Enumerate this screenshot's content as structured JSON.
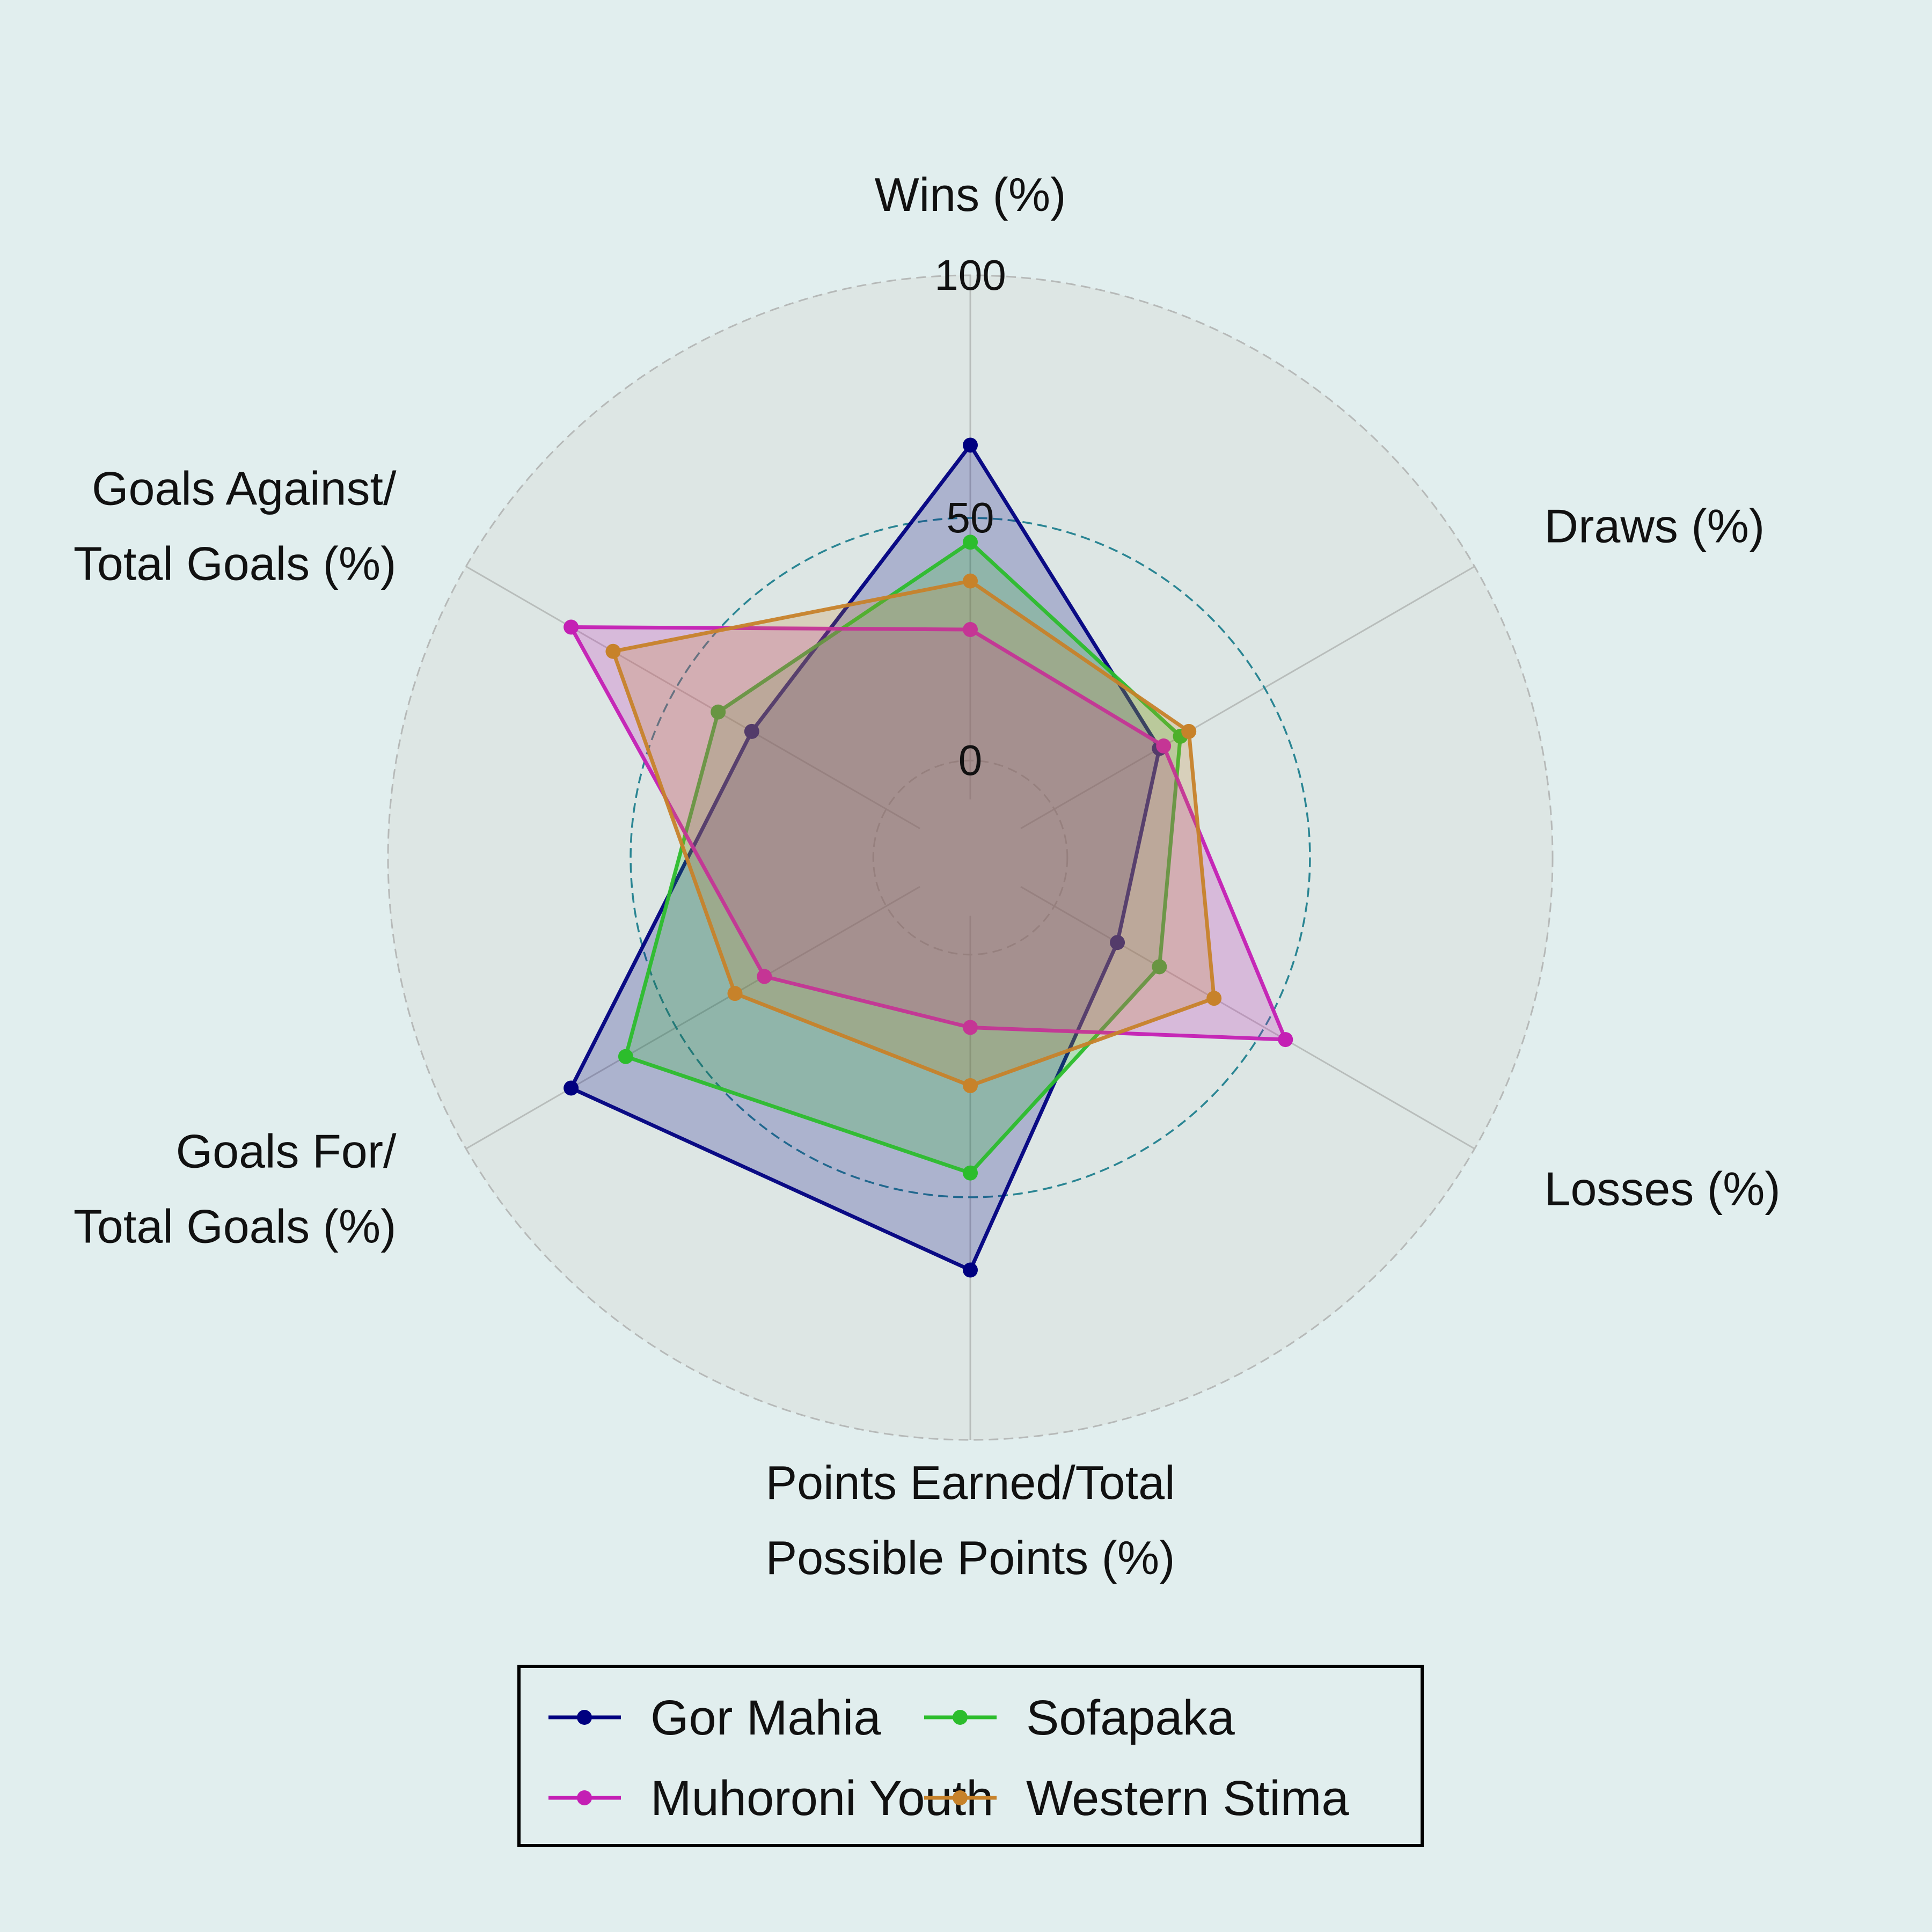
{
  "background_color": "#e1eeee",
  "chart_data": {
    "type": "radar",
    "axes": [
      [
        "Wins (%)"
      ],
      [
        "Draws (%)"
      ],
      [
        "Losses (%)"
      ],
      [
        "Points Earned/Total",
        "Possible Points (%)"
      ],
      [
        "Goals For/",
        "Total Goals (%)"
      ],
      [
        "Goals Against/",
        "Total Goals (%)"
      ]
    ],
    "radial_range": [
      -20,
      100
    ],
    "radial_ticks": [
      0,
      50,
      100
    ],
    "grid": true,
    "legend": {
      "placement": "bottom-center",
      "columns": 2
    },
    "series": [
      {
        "name": "Gor Mahia",
        "color": "#000080",
        "values": [
          65,
          25,
          15,
          65,
          75,
          32
        ]
      },
      {
        "name": "Sofapaka",
        "color": "#2cbd2c",
        "values": [
          45,
          30,
          25,
          45,
          62,
          40
        ]
      },
      {
        "name": "Muhoroni Youth",
        "color": "#c41fb4",
        "values": [
          27,
          26,
          55,
          15,
          29,
          75
        ]
      },
      {
        "name": "Western Stima",
        "color": "#c7822a",
        "values": [
          37,
          32,
          38,
          27,
          36,
          65
        ]
      }
    ]
  }
}
